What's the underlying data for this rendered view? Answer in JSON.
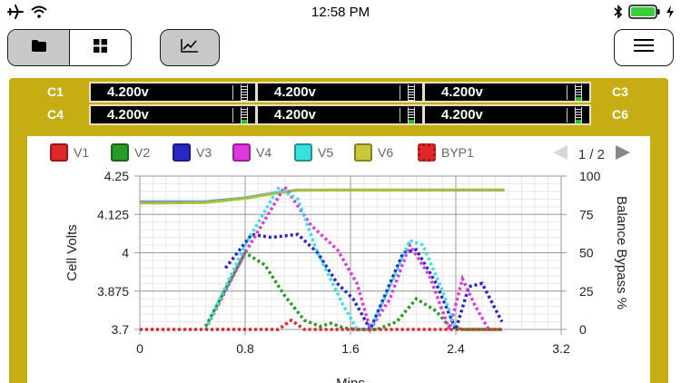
{
  "status": {
    "time": "12:58 PM"
  },
  "icons": {
    "airplane": "airplane-icon",
    "wifi": "wifi-icon",
    "bluetooth": "bluetooth-icon",
    "battery": "battery-icon",
    "charging": "charging-icon",
    "folder": "folder-icon",
    "grid": "grid-icon",
    "chart": "line-chart-icon",
    "menu": "hamburger-menu-icon"
  },
  "colors": {
    "frame": "#c7ad14",
    "battery": "#3ccd3c"
  },
  "cells": {
    "row1": {
      "left_label": "C1",
      "right_label": "C3",
      "values": [
        "4.200v",
        "4.200v",
        "4.200v"
      ],
      "fills": [
        0,
        0,
        0.25
      ]
    },
    "row2": {
      "left_label": "C4",
      "right_label": "C6",
      "values": [
        "4.200v",
        "4.200v",
        "4.200v"
      ],
      "fills": [
        0.25,
        0.25,
        0.25
      ]
    }
  },
  "legend": [
    {
      "label": "V1",
      "color": "#e02828"
    },
    {
      "label": "V2",
      "color": "#2a9a2a"
    },
    {
      "label": "V3",
      "color": "#2828c8"
    },
    {
      "label": "V4",
      "color": "#e038e0"
    },
    {
      "label": "V5",
      "color": "#38e0e0"
    },
    {
      "label": "V6",
      "color": "#c8c83a"
    },
    {
      "label": "BYP1",
      "color": "#e02828"
    }
  ],
  "pager": {
    "text": "1 / 2"
  },
  "chart_data": {
    "type": "line",
    "xlabel": "Mins",
    "ylabel": "Cell Volts",
    "y2label": "Balance Bypass %",
    "xlim": [
      0,
      3.2
    ],
    "ylim": [
      3.7,
      4.25
    ],
    "y2lim": [
      0,
      100
    ],
    "xticks": [
      "0",
      "0.8",
      "1.6",
      "2.4",
      "3.2"
    ],
    "yticks": [
      "3.7",
      "3.875",
      "4",
      "4.125",
      "4.25"
    ],
    "y2ticks": [
      "0",
      "25",
      "50",
      "75",
      "100"
    ],
    "grid": true,
    "series": [
      {
        "color": "#5a8ad8",
        "style": "solid",
        "axis": "left",
        "x": [
          0,
          0.2,
          0.5,
          0.8,
          1.0,
          1.2,
          1.5,
          2.0,
          2.5,
          2.77
        ],
        "y": [
          4.1575,
          4.1575,
          4.158,
          4.172,
          4.188,
          4.2,
          4.2,
          4.2,
          4.2,
          4.2
        ]
      },
      {
        "color": "#a8c23a",
        "style": "solid",
        "axis": "left",
        "x": [
          0,
          0.2,
          0.5,
          0.8,
          1.0,
          1.2,
          1.5,
          2.0,
          2.5,
          2.77
        ],
        "y": [
          4.153,
          4.153,
          4.155,
          4.17,
          4.186,
          4.199,
          4.2,
          4.2,
          4.201,
          4.201
        ]
      },
      {
        "color": "#2a9a2a",
        "style": "dotted",
        "axis": "right",
        "x": [
          0.5,
          0.8,
          0.95,
          1.1,
          1.25,
          1.37,
          1.45,
          1.55,
          1.65,
          1.8,
          1.95,
          2.1,
          2.25,
          2.35,
          2.45,
          2.6,
          2.75
        ],
        "y": [
          2,
          50,
          42,
          22,
          6,
          2,
          4,
          1,
          0,
          0,
          5,
          20,
          12,
          2,
          0,
          0,
          0
        ]
      },
      {
        "color": "#2828c8",
        "style": "dotted",
        "axis": "right",
        "x": [
          0.65,
          0.85,
          1.0,
          1.2,
          1.35,
          1.5,
          1.62,
          1.75,
          1.85,
          2.0,
          2.1,
          2.25,
          2.4,
          2.5,
          2.6,
          2.75
        ],
        "y": [
          40,
          62,
          60,
          62,
          50,
          30,
          20,
          0,
          20,
          50,
          52,
          30,
          0,
          28,
          30,
          5
        ]
      },
      {
        "color": "#e038e0",
        "style": "dotted",
        "axis": "right",
        "x": [
          0.5,
          0.8,
          1.1,
          1.3,
          1.5,
          1.65,
          1.75,
          1.9,
          2.05,
          2.2,
          2.35,
          2.45,
          2.55,
          2.65
        ],
        "y": [
          0,
          50,
          93,
          68,
          52,
          30,
          0,
          20,
          55,
          35,
          0,
          33,
          15,
          0
        ]
      },
      {
        "color": "#38e0e0",
        "style": "dotted",
        "axis": "right",
        "x": [
          0.5,
          0.8,
          1.05,
          1.2,
          1.35,
          1.55,
          1.65,
          1.75,
          1.9,
          2.05,
          2.15,
          2.3,
          2.4
        ],
        "y": [
          0,
          55,
          92,
          85,
          50,
          15,
          0,
          0,
          28,
          58,
          55,
          25,
          0
        ]
      },
      {
        "color": "#e02828",
        "style": "dotted",
        "axis": "right",
        "x": [
          0,
          0.5,
          1.05,
          1.15,
          1.25,
          1.4,
          1.55,
          1.75,
          2.0,
          2.4,
          2.75
        ],
        "y": [
          0,
          0,
          0,
          6,
          0,
          0,
          0,
          0,
          0,
          0,
          0
        ]
      }
    ]
  }
}
